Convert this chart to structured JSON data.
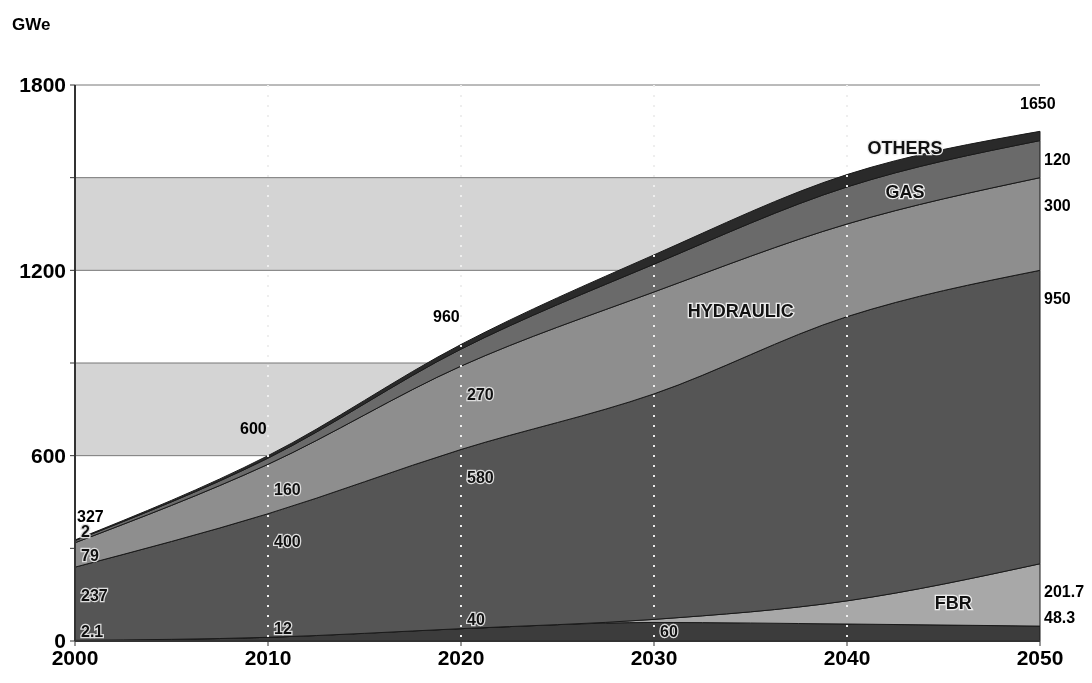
{
  "chart_data": {
    "type": "area",
    "stacked": true,
    "ylabel": "GWe",
    "x": [
      2000,
      2010,
      2020,
      2030,
      2040,
      2050
    ],
    "xlim": [
      2000,
      2050
    ],
    "xticks": [
      2000,
      2010,
      2020,
      2030,
      2040,
      2050
    ],
    "ylim": [
      0,
      1800
    ],
    "yticks": [
      0,
      {
        "value": 300,
        "label": null
      },
      600,
      {
        "value": 900,
        "label": null
      },
      1200,
      {
        "value": 1500,
        "label": null
      },
      1800
    ],
    "grid": true,
    "bands": [
      {
        "axis": "y",
        "from": 600,
        "to": 900,
        "color": "#d4d4d4"
      },
      {
        "axis": "y",
        "from": 1200,
        "to": 1500,
        "color": "#d4d4d4"
      }
    ],
    "series": [
      {
        "color": "#3c3c3c",
        "values": [
          2.1,
          12,
          40,
          60,
          55,
          48.3
        ],
        "value_labels": [
          "2.1",
          "12",
          "40",
          "60",
          null,
          "48.3"
        ]
      },
      {
        "name": "FBR",
        "color": "#a8a8a8",
        "values": [
          0,
          0,
          0,
          10,
          75,
          201.7
        ],
        "value_labels": [
          null,
          null,
          null,
          null,
          null,
          "201.7"
        ]
      },
      {
        "color": "#555555",
        "values": [
          237,
          400,
          580,
          730,
          920,
          950
        ],
        "value_labels": [
          "237",
          "400",
          "580",
          null,
          null,
          "950"
        ]
      },
      {
        "name": "HYDRAULIC",
        "color": "#8e8e8e",
        "values": [
          79,
          160,
          270,
          330,
          300,
          300
        ],
        "value_labels": [
          "79",
          "160",
          "270",
          null,
          null,
          "300"
        ]
      },
      {
        "name": "GAS",
        "color": "#6a6a6a",
        "values": [
          7,
          20,
          55,
          90,
          120,
          120
        ],
        "value_labels": [
          null,
          null,
          null,
          null,
          null,
          "120"
        ]
      },
      {
        "name": "OTHERS",
        "color": "#2a2a2a",
        "values": [
          2,
          8,
          15,
          30,
          40,
          30
        ],
        "value_labels": [
          "2",
          null,
          null,
          null,
          null,
          null
        ]
      }
    ],
    "totals": [
      "327",
      "600",
      "960",
      null,
      null,
      "1650"
    ]
  }
}
